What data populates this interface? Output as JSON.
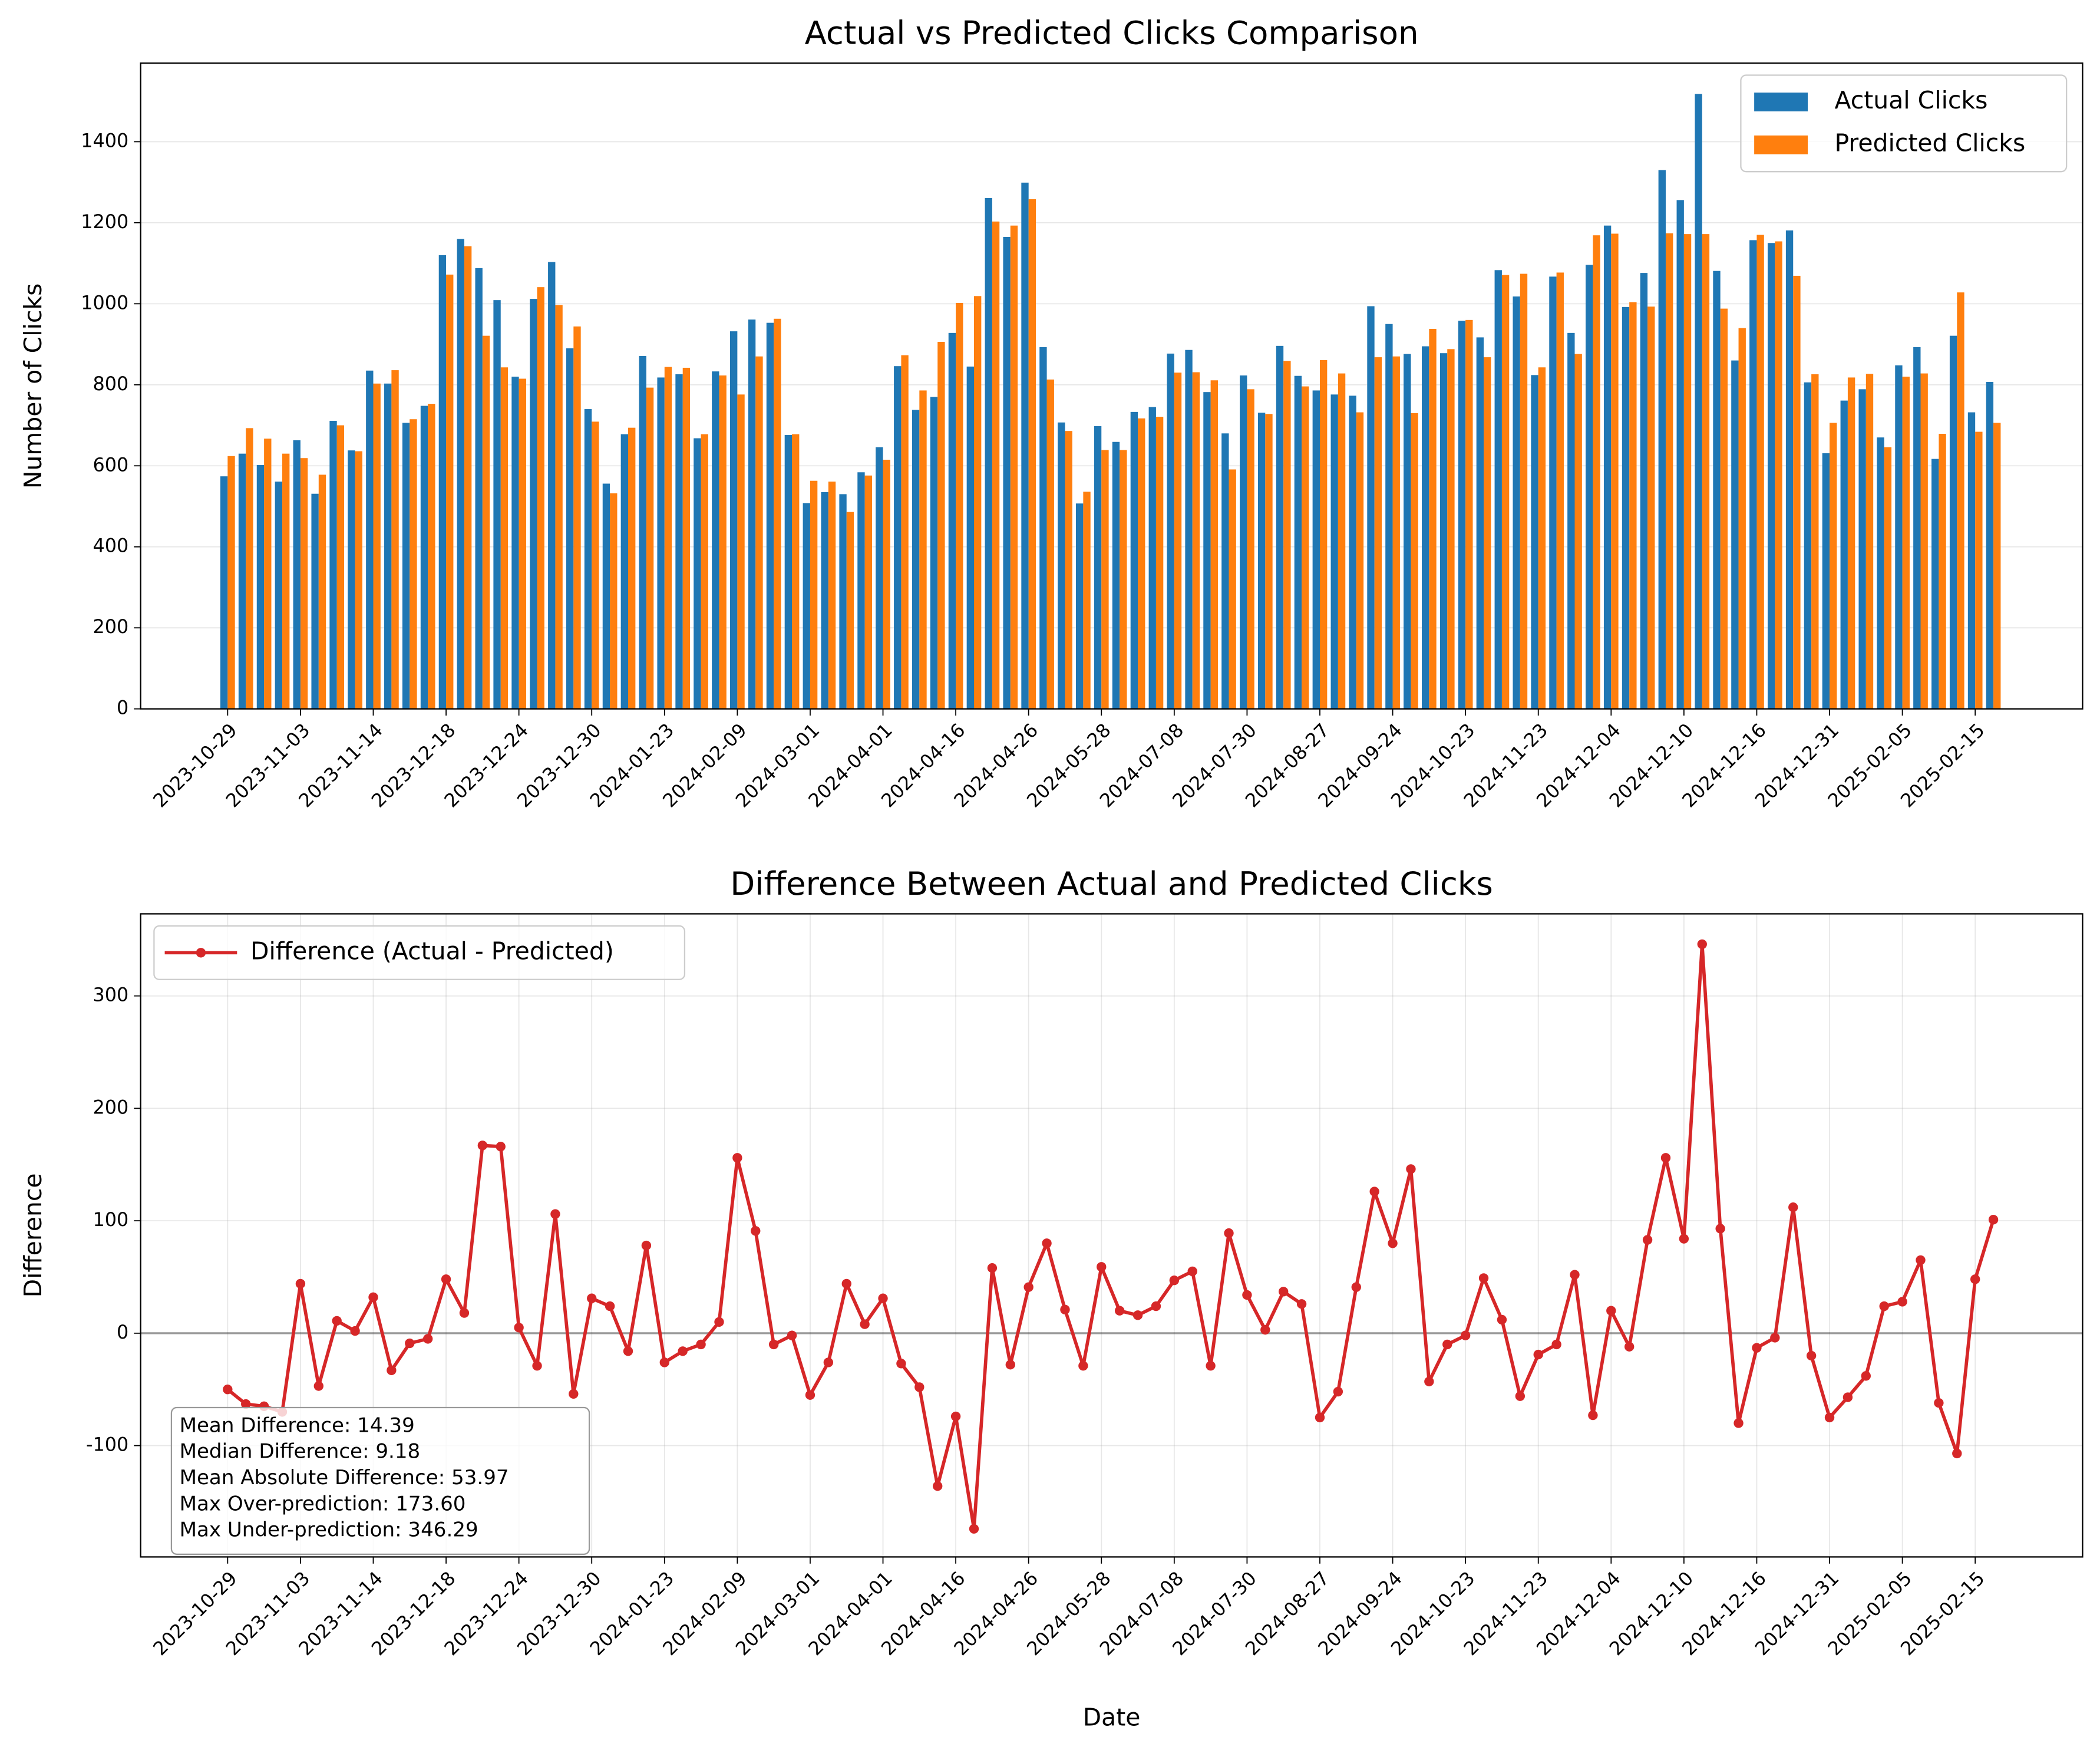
{
  "chart_data": [
    {
      "type": "bar",
      "title": "Actual vs Predicted Clicks Comparison",
      "ylabel": "Number of Clicks",
      "categories": [
        "2023-10-29",
        null,
        null,
        null,
        "2023-11-03",
        null,
        null,
        null,
        "2023-11-14",
        null,
        null,
        null,
        "2023-12-18",
        null,
        null,
        null,
        "2023-12-24",
        null,
        null,
        null,
        "2023-12-30",
        null,
        null,
        null,
        "2024-01-23",
        null,
        null,
        null,
        "2024-02-09",
        null,
        null,
        null,
        "2024-03-01",
        null,
        null,
        null,
        "2024-04-01",
        null,
        null,
        null,
        "2024-04-16",
        null,
        null,
        null,
        "2024-04-26",
        null,
        null,
        null,
        "2024-05-28",
        null,
        null,
        null,
        "2024-07-08",
        null,
        null,
        null,
        "2024-07-30",
        null,
        null,
        null,
        "2024-08-27",
        null,
        null,
        null,
        "2024-09-24",
        null,
        null,
        null,
        "2024-10-23",
        null,
        null,
        null,
        "2024-11-23",
        null,
        null,
        null,
        "2024-12-04",
        null,
        null,
        null,
        "2024-12-10",
        null,
        null,
        null,
        "2024-12-16",
        null,
        null,
        null,
        "2024-12-31",
        null,
        null,
        null,
        "2025-02-05",
        null,
        null,
        null,
        "2025-02-15",
        null
      ],
      "series": [
        {
          "name": "Actual Clicks",
          "color": "#1f77b4",
          "values": [
            574,
            630,
            602,
            561,
            663,
            531,
            711,
            638,
            835,
            803,
            706,
            748,
            1120,
            1160,
            1088,
            1009,
            820,
            1012,
            1103,
            890,
            740,
            556,
            678,
            871,
            818,
            826,
            668,
            833,
            932,
            961,
            953,
            676,
            508,
            535,
            530,
            584,
            646,
            846,
            738,
            770,
            928,
            845,
            1261,
            1165,
            1299,
            893,
            707,
            507,
            698,
            659,
            733,
            745,
            877,
            886,
            782,
            680,
            823,
            731,
            896,
            822,
            786,
            776,
            773,
            994,
            950,
            876,
            895,
            878,
            958,
            917,
            1083,
            1018,
            824,
            1067,
            928,
            1096,
            1193,
            992,
            1076,
            1330,
            1256,
            1518,
            1081,
            860,
            1157,
            1150,
            1181,
            806,
            631,
            761,
            789,
            670,
            848,
            893,
            617,
            921,
            732,
            807
          ]
        },
        {
          "name": "Predicted Clicks",
          "color": "#ff7f0e",
          "values": [
            624,
            693,
            667,
            630,
            619,
            578,
            700,
            636,
            803,
            836,
            715,
            753,
            1072,
            1142,
            921,
            843,
            815,
            1041,
            997,
            944,
            709,
            532,
            694,
            793,
            844,
            842,
            678,
            823,
            776,
            870,
            963,
            678,
            563,
            561,
            486,
            576,
            615,
            873,
            786,
            906,
            1002,
            1019,
            1203,
            1193,
            1258,
            813,
            686,
            536,
            639,
            639,
            717,
            721,
            830,
            831,
            811,
            591,
            789,
            728,
            859,
            796,
            861,
            828,
            732,
            868,
            870,
            730,
            938,
            888,
            960,
            868,
            1071,
            1074,
            843,
            1077,
            876,
            1169,
            1173,
            1004,
            993,
            1174,
            1172,
            1172,
            988,
            940,
            1170,
            1154,
            1069,
            826,
            706,
            818,
            827,
            646,
            820,
            828,
            679,
            1028,
            684,
            706
          ]
        }
      ],
      "ylim": [
        0,
        1594
      ],
      "yticks": [
        0,
        200,
        400,
        600,
        800,
        1000,
        1200,
        1400
      ],
      "grid": "y",
      "legend": "upper right"
    },
    {
      "type": "line",
      "title": "Difference Between Actual and Predicted Clicks",
      "xlabel": "Date",
      "ylabel": "Difference",
      "categories": [
        "2023-10-29",
        null,
        null,
        null,
        "2023-11-03",
        null,
        null,
        null,
        "2023-11-14",
        null,
        null,
        null,
        "2023-12-18",
        null,
        null,
        null,
        "2023-12-24",
        null,
        null,
        null,
        "2023-12-30",
        null,
        null,
        null,
        "2024-01-23",
        null,
        null,
        null,
        "2024-02-09",
        null,
        null,
        null,
        "2024-03-01",
        null,
        null,
        null,
        "2024-04-01",
        null,
        null,
        null,
        "2024-04-16",
        null,
        null,
        null,
        "2024-04-26",
        null,
        null,
        null,
        "2024-05-28",
        null,
        null,
        null,
        "2024-07-08",
        null,
        null,
        null,
        "2024-07-30",
        null,
        null,
        null,
        "2024-08-27",
        null,
        null,
        null,
        "2024-09-24",
        null,
        null,
        null,
        "2024-10-23",
        null,
        null,
        null,
        "2024-11-23",
        null,
        null,
        null,
        "2024-12-04",
        null,
        null,
        null,
        "2024-12-10",
        null,
        null,
        null,
        "2024-12-16",
        null,
        null,
        null,
        "2024-12-31",
        null,
        null,
        null,
        "2025-02-05",
        null,
        null,
        null,
        "2025-02-15",
        null
      ],
      "series": [
        {
          "name": "Difference (Actual - Predicted)",
          "color": "#d62728",
          "values": [
            -50,
            -63,
            -65,
            -70,
            44,
            -47,
            11,
            2,
            32,
            -33,
            -9,
            -5,
            48,
            18,
            167,
            166,
            5,
            -29,
            106,
            -54,
            31,
            24,
            -16,
            78,
            -26,
            -16,
            -10,
            10,
            156,
            91,
            -10,
            -2,
            -55,
            -26,
            44,
            8,
            31,
            -27,
            -48,
            -136,
            -74,
            -174,
            58,
            -28,
            41,
            80,
            21,
            -29,
            59,
            20,
            16,
            24,
            47,
            55,
            -29,
            89,
            34,
            3,
            37,
            26,
            -75,
            -52,
            41,
            126,
            80,
            146,
            -43,
            -10,
            -2,
            49,
            12,
            -56,
            -19,
            -10,
            52,
            -73,
            20,
            -12,
            83,
            156,
            84,
            346,
            93,
            -80,
            -13,
            -4,
            112,
            -20,
            -75,
            -57,
            -38,
            24,
            28,
            65,
            -62,
            -107,
            48,
            101
          ]
        }
      ],
      "ylim": [
        -199,
        373
      ],
      "yticks": [
        -100,
        0,
        100,
        200,
        300
      ],
      "grid": "both",
      "legend": "upper left",
      "annotations": [
        "Mean Difference: 14.39",
        "Median Difference: 9.18",
        "Mean Absolute Difference: 53.97",
        "Max Over-prediction: 173.60",
        "Max Under-prediction: 346.29"
      ]
    }
  ]
}
